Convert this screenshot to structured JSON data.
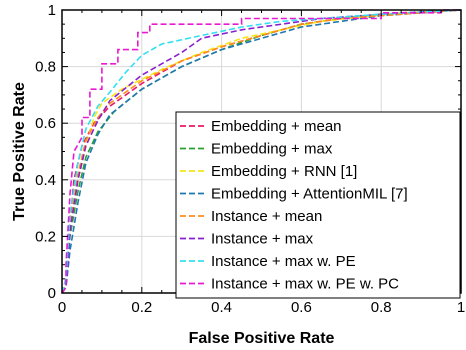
{
  "chart_data": {
    "type": "line",
    "xlabel": "False Positive Rate",
    "ylabel": "True Positive Rate",
    "xlim": [
      0,
      1
    ],
    "ylim": [
      0,
      1
    ],
    "x_ticks": [
      0,
      0.2,
      0.4,
      0.6,
      0.8,
      1
    ],
    "x_tick_labels": [
      "0",
      "0.2",
      "0.4",
      "0.6",
      "0.8",
      "1"
    ],
    "y_ticks": [
      0,
      0.2,
      0.4,
      0.6,
      0.8,
      1
    ],
    "y_tick_labels": [
      "0",
      "0.2",
      "0.4",
      "0.6",
      "0.8",
      "1"
    ],
    "grid": true,
    "legend_position": "bottom-right",
    "series": [
      {
        "name": "Embedding + mean",
        "color": "#e8196b",
        "points": [
          [
            0,
            0
          ],
          [
            0.01,
            0.05
          ],
          [
            0.02,
            0.25
          ],
          [
            0.03,
            0.4
          ],
          [
            0.05,
            0.52
          ],
          [
            0.08,
            0.6
          ],
          [
            0.12,
            0.66
          ],
          [
            0.2,
            0.74
          ],
          [
            0.3,
            0.82
          ],
          [
            0.4,
            0.87
          ],
          [
            0.5,
            0.91
          ],
          [
            0.6,
            0.95
          ],
          [
            0.7,
            0.97
          ],
          [
            0.8,
            0.985
          ],
          [
            0.9,
            0.99
          ],
          [
            1.0,
            1.0
          ]
        ]
      },
      {
        "name": "Embedding + max",
        "color": "#2ca02c",
        "points": [
          [
            0,
            0
          ],
          [
            0.01,
            0.03
          ],
          [
            0.02,
            0.2
          ],
          [
            0.04,
            0.36
          ],
          [
            0.06,
            0.48
          ],
          [
            0.09,
            0.57
          ],
          [
            0.13,
            0.64
          ],
          [
            0.2,
            0.72
          ],
          [
            0.3,
            0.8
          ],
          [
            0.4,
            0.86
          ],
          [
            0.5,
            0.91
          ],
          [
            0.6,
            0.95
          ],
          [
            0.7,
            0.97
          ],
          [
            0.8,
            0.985
          ],
          [
            0.9,
            0.99
          ],
          [
            1.0,
            1.0
          ]
        ]
      },
      {
        "name": "Embedding + RNN [1]",
        "color": "#f5e61a",
        "points": [
          [
            0,
            0
          ],
          [
            0.01,
            0.04
          ],
          [
            0.02,
            0.22
          ],
          [
            0.04,
            0.4
          ],
          [
            0.06,
            0.52
          ],
          [
            0.08,
            0.62
          ],
          [
            0.1,
            0.67
          ],
          [
            0.15,
            0.72
          ],
          [
            0.25,
            0.79
          ],
          [
            0.35,
            0.85
          ],
          [
            0.45,
            0.9
          ],
          [
            0.55,
            0.93
          ],
          [
            0.65,
            0.96
          ],
          [
            0.75,
            0.975
          ],
          [
            0.85,
            0.99
          ],
          [
            1.0,
            1.0
          ]
        ]
      },
      {
        "name": "Embedding + AttentionMIL [7]",
        "color": "#1f77b4",
        "points": [
          [
            0,
            0
          ],
          [
            0.01,
            0.02
          ],
          [
            0.02,
            0.15
          ],
          [
            0.04,
            0.32
          ],
          [
            0.06,
            0.46
          ],
          [
            0.09,
            0.56
          ],
          [
            0.12,
            0.63
          ],
          [
            0.2,
            0.72
          ],
          [
            0.3,
            0.8
          ],
          [
            0.4,
            0.86
          ],
          [
            0.5,
            0.9
          ],
          [
            0.6,
            0.94
          ],
          [
            0.7,
            0.96
          ],
          [
            0.8,
            0.98
          ],
          [
            0.9,
            0.99
          ],
          [
            1.0,
            1.0
          ]
        ]
      },
      {
        "name": "Instance + mean",
        "color": "#ff8c1a",
        "points": [
          [
            0,
            0
          ],
          [
            0.01,
            0.04
          ],
          [
            0.02,
            0.24
          ],
          [
            0.04,
            0.42
          ],
          [
            0.06,
            0.54
          ],
          [
            0.09,
            0.62
          ],
          [
            0.12,
            0.67
          ],
          [
            0.2,
            0.75
          ],
          [
            0.3,
            0.82
          ],
          [
            0.4,
            0.87
          ],
          [
            0.5,
            0.91
          ],
          [
            0.6,
            0.95
          ],
          [
            0.7,
            0.97
          ],
          [
            0.8,
            0.98
          ],
          [
            0.9,
            0.99
          ],
          [
            1.0,
            1.0
          ]
        ]
      },
      {
        "name": "Instance + max",
        "color": "#8a1fcf",
        "points": [
          [
            0,
            0
          ],
          [
            0.01,
            0.03
          ],
          [
            0.02,
            0.22
          ],
          [
            0.04,
            0.4
          ],
          [
            0.06,
            0.52
          ],
          [
            0.09,
            0.61
          ],
          [
            0.12,
            0.68
          ],
          [
            0.2,
            0.77
          ],
          [
            0.3,
            0.85
          ],
          [
            0.35,
            0.9
          ],
          [
            0.45,
            0.93
          ],
          [
            0.55,
            0.95
          ],
          [
            0.65,
            0.97
          ],
          [
            0.75,
            0.98
          ],
          [
            0.85,
            0.99
          ],
          [
            1.0,
            1.0
          ]
        ]
      },
      {
        "name": "Instance + max w. PE",
        "color": "#33e0f0",
        "points": [
          [
            0,
            0
          ],
          [
            0.01,
            0.05
          ],
          [
            0.02,
            0.28
          ],
          [
            0.04,
            0.46
          ],
          [
            0.06,
            0.58
          ],
          [
            0.09,
            0.66
          ],
          [
            0.12,
            0.71
          ],
          [
            0.16,
            0.78
          ],
          [
            0.2,
            0.84
          ],
          [
            0.25,
            0.88
          ],
          [
            0.35,
            0.91
          ],
          [
            0.45,
            0.94
          ],
          [
            0.55,
            0.96
          ],
          [
            0.65,
            0.97
          ],
          [
            0.8,
            0.985
          ],
          [
            1.0,
            1.0
          ]
        ]
      },
      {
        "name": "Instance + max w. PE w. PC",
        "color": "#e81ad1",
        "points": [
          [
            0,
            0
          ],
          [
            0.01,
            0.02
          ],
          [
            0.01,
            0.1
          ],
          [
            0.02,
            0.35
          ],
          [
            0.03,
            0.5
          ],
          [
            0.05,
            0.55
          ],
          [
            0.05,
            0.62
          ],
          [
            0.07,
            0.62
          ],
          [
            0.07,
            0.72
          ],
          [
            0.1,
            0.72
          ],
          [
            0.1,
            0.81
          ],
          [
            0.14,
            0.81
          ],
          [
            0.14,
            0.86
          ],
          [
            0.19,
            0.86
          ],
          [
            0.19,
            0.92
          ],
          [
            0.22,
            0.92
          ],
          [
            0.22,
            0.95
          ],
          [
            0.45,
            0.95
          ],
          [
            0.45,
            0.97
          ],
          [
            0.8,
            0.97
          ],
          [
            0.8,
            0.99
          ],
          [
            0.95,
            0.99
          ],
          [
            0.95,
            1.0
          ],
          [
            1.0,
            1.0
          ]
        ]
      }
    ]
  }
}
